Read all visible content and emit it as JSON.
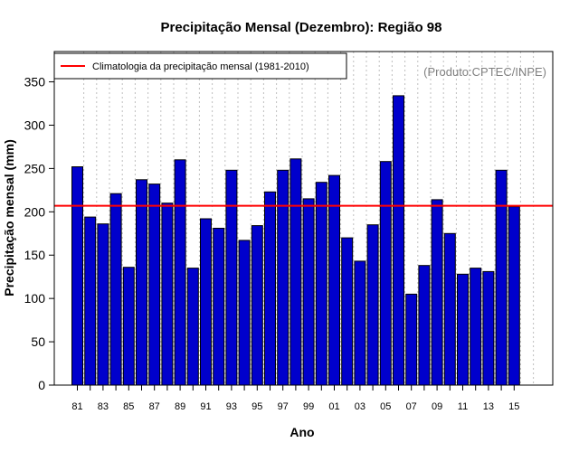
{
  "chart_data": {
    "type": "bar",
    "title": "Precipitação Mensal (Dezembro): Região 98",
    "xlabel": "Ano",
    "ylabel": "Precipitação mensal (mm)",
    "ylim": [
      0,
      385
    ],
    "yticks": [
      0,
      50,
      100,
      150,
      200,
      250,
      300,
      350
    ],
    "grid": "vertical-dotted",
    "categories": [
      "81",
      "82",
      "83",
      "84",
      "85",
      "86",
      "87",
      "88",
      "89",
      "90",
      "91",
      "92",
      "93",
      "94",
      "95",
      "96",
      "97",
      "98",
      "99",
      "00",
      "01",
      "02",
      "03",
      "04",
      "05",
      "06",
      "07",
      "08",
      "09",
      "10",
      "11",
      "12",
      "13",
      "14",
      "15"
    ],
    "xtick_labels": [
      "81",
      "83",
      "85",
      "87",
      "89",
      "91",
      "93",
      "95",
      "97",
      "99",
      "01",
      "03",
      "05",
      "07",
      "09",
      "11",
      "13",
      "15"
    ],
    "values": [
      252,
      194,
      186,
      221,
      136,
      237,
      232,
      210,
      260,
      135,
      192,
      181,
      248,
      167,
      184,
      223,
      248,
      261,
      215,
      234,
      242,
      170,
      143,
      185,
      258,
      334,
      105,
      138,
      214,
      175,
      128,
      135,
      131,
      248,
      206
    ],
    "reference_line": {
      "label": "Climatologia da precipitação mensal (1981-2010)",
      "value": 207,
      "color": "#ff0000"
    },
    "bar_color": "#0000cc",
    "legend_position": "top-left",
    "credit": "(Produto:CPTEC/INPE)"
  }
}
